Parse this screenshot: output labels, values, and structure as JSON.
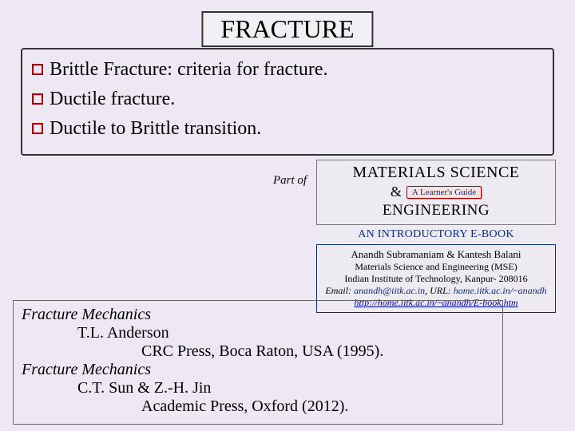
{
  "title": "FRACTURE",
  "bullets": [
    "Brittle Fracture: criteria for fracture.",
    "Ductile fracture.",
    "Ductile to Brittle transition."
  ],
  "mse": {
    "partof": "Part of",
    "line1": "MATERIALS SCIENCE",
    "amp": "&",
    "guide": "A Learner's Guide",
    "line2": "ENGINEERING",
    "ebook": "AN INTRODUCTORY E-BOOK",
    "authors": "Anandh Subramaniam & Kantesh Balani",
    "dept": "Materials Science and Engineering (MSE)",
    "inst": "Indian Institute of Technology, Kanpur- 208016",
    "email_label": "Email:",
    "email_val": "anandh@iitk.ac.in",
    "url_label": "URL:",
    "url_short": "home.iitk.ac.in/~anandh",
    "url_full": "http://home.iitk.ac.in/~anandh/E-book.htm"
  },
  "refs": [
    {
      "title": "Fracture Mechanics",
      "author": "T.L. Anderson",
      "pub": "CRC Press, Boca Raton, USA (1995)."
    },
    {
      "title": "Fracture Mechanics",
      "author": "C.T. Sun & Z.-H. Jin",
      "pub": "Academic Press, Oxford (2012)."
    }
  ],
  "colors": {
    "background": "#eee8f5",
    "bullet_border": "#b00000",
    "link": "#0000aa",
    "author_box_border": "#0a2a7a"
  }
}
